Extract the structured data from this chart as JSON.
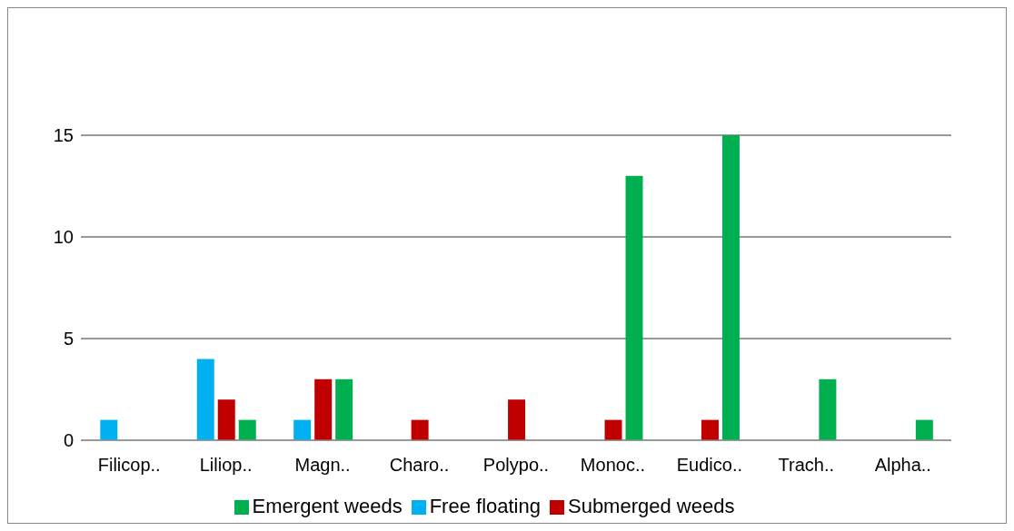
{
  "chart_data": {
    "type": "bar",
    "categories": [
      "Filicop..",
      "Liliop..",
      "Magn..",
      "Charo..",
      "Polypo..",
      "Monoc..",
      "Eudico..",
      "Trach..",
      "Alpha.."
    ],
    "series": [
      {
        "name": "Free floating",
        "color": "#00b0f0",
        "values": [
          1,
          4,
          1,
          0,
          0,
          0,
          0,
          0,
          0
        ]
      },
      {
        "name": "Submerged weeds",
        "color": "#c00000",
        "values": [
          0,
          2,
          3,
          1,
          2,
          1,
          1,
          0,
          0
        ]
      },
      {
        "name": "Emergent weeds",
        "color": "#00b050",
        "values": [
          0,
          1,
          3,
          0,
          0,
          13,
          15,
          3,
          1
        ]
      }
    ],
    "ylim": [
      0,
      15
    ],
    "yticks": [
      0,
      5,
      10,
      15
    ],
    "grid": "y",
    "legend": "bottom"
  }
}
